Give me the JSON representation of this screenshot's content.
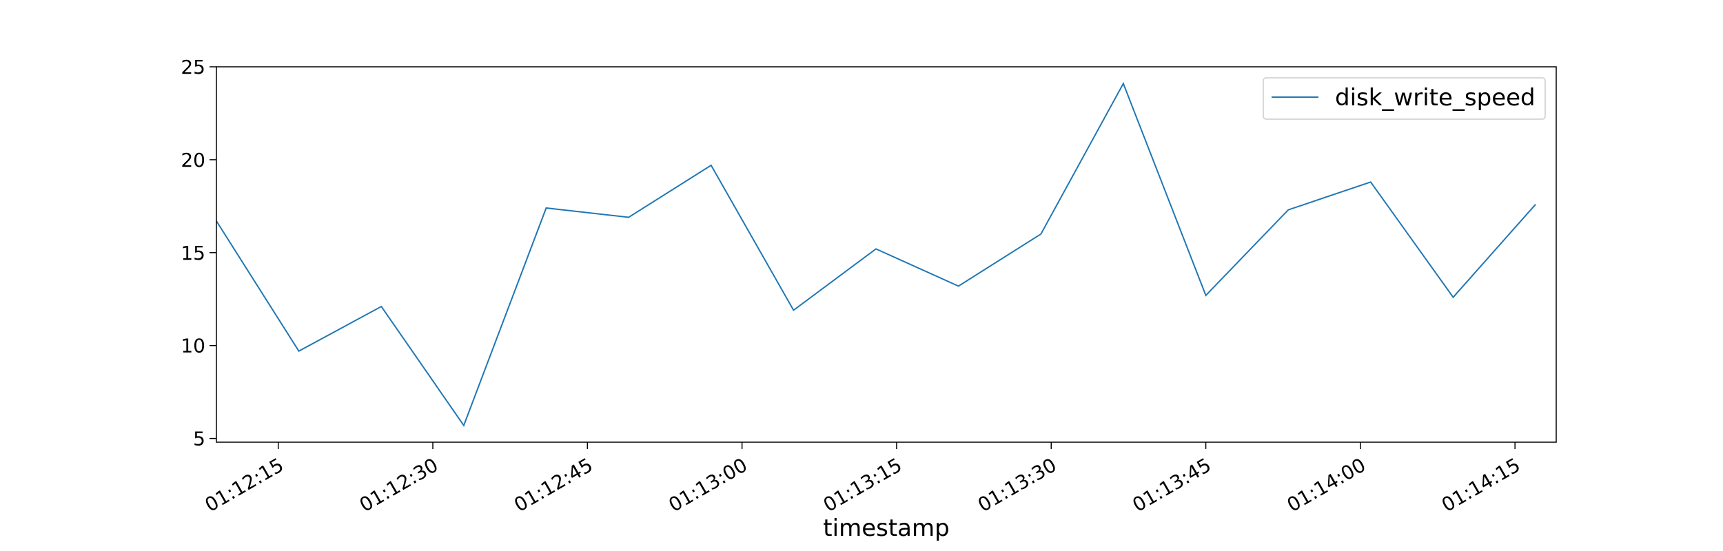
{
  "chart_data": {
    "type": "line",
    "xlabel": "timestamp",
    "ylabel": "",
    "x_ticks": [
      "01:12:15",
      "01:12:30",
      "01:12:45",
      "01:13:00",
      "01:13:15",
      "01:13:30",
      "01:13:45",
      "01:14:00",
      "01:14:15"
    ],
    "x_range": [
      "01:12:09",
      "01:14:19"
    ],
    "ylim": [
      4.8,
      25.0
    ],
    "y_ticks": [
      5,
      10,
      15,
      20,
      25
    ],
    "grid": false,
    "legend_position": "top-right",
    "series": [
      {
        "name": "disk_write_speed",
        "color": "#1f77b4",
        "x": [
          "01:12:09",
          "01:12:17",
          "01:12:25",
          "01:12:33",
          "01:12:41",
          "01:12:49",
          "01:12:57",
          "01:13:05",
          "01:13:13",
          "01:13:21",
          "01:13:29",
          "01:13:37",
          "01:13:45",
          "01:13:53",
          "01:14:01",
          "01:14:09",
          "01:14:17"
        ],
        "values": [
          16.7,
          9.7,
          12.1,
          5.7,
          17.4,
          16.9,
          19.7,
          11.9,
          15.2,
          13.2,
          16.0,
          24.1,
          12.7,
          17.3,
          18.8,
          12.6,
          17.6
        ]
      }
    ]
  }
}
